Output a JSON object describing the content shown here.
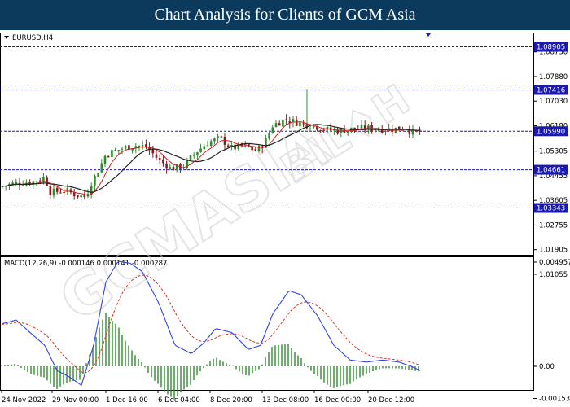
{
  "header": {
    "title": "Chart Analysis for Clients of GCM Asia"
  },
  "symbol_label": "EURUSD,H4",
  "watermark": {
    "text": "GCMASIA"
  },
  "colors": {
    "header_bg": "#0b3a5c",
    "level_line": "#1a1ab3",
    "badge_bg": "#1a1ab3",
    "bull": "#2e8b2e",
    "bear": "#8b1a1a",
    "ma_fast": "#cc2222",
    "ma_slow": "#222222",
    "macd_line": "#3344dd",
    "macd_signal": "#dd3322",
    "histogram": "#2e8b2e"
  },
  "price_axis": {
    "ticks": [
      "1.08730",
      "1.07880",
      "1.07030",
      "1.06180",
      "1.05305",
      "1.04455",
      "1.03605",
      "1.02755",
      "1.01905",
      "1.01055"
    ],
    "levels": [
      "1.08905",
      "1.07416",
      "1.05990",
      "1.04661",
      "1.03343"
    ]
  },
  "macd": {
    "label": "MACD(12,26,9) -0.000146 0.000141 -0.000287",
    "axis_ticks": [
      "0.004957",
      "0.00",
      "-0.001532"
    ]
  },
  "time_axis": {
    "labels": [
      "24 Nov 2022",
      "29 Nov 00:00",
      "1 Dec 16:00",
      "6 Dec 04:00",
      "8 Dec 20:00",
      "13 Dec 08:00",
      "16 Dec 00:00",
      "20 Dec 12:00"
    ]
  }
}
